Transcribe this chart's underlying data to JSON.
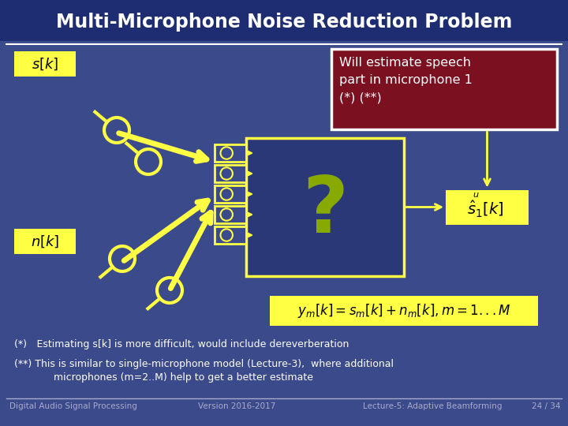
{
  "title": "Multi-Microphone Noise Reduction Problem",
  "bg_color": "#3A4A8A",
  "title_bg_color": "#1E2D72",
  "yellow": "#FFFF44",
  "red_box_color": "#7B1020",
  "white": "#FFFFFF",
  "footer_text_color": "#AAAACC",
  "footer_left": "Digital Audio Signal Processing",
  "footer_center": "Version 2016-2017",
  "footer_right_left": "Lecture-5: Adaptive Beamforming",
  "footer_right": "24 / 34",
  "note1": "(*) Estimating s[k] is more difficult, would include dereverberation",
  "note2": "(**) This is similar to single-microphone model (Lecture-3),  where additional",
  "note2b": "    microphones (m=2..M) help to get a better estimate",
  "red_box_text": "Will estimate speech\npart in microphone 1\n(*) (**)",
  "question_color": "#88AA00",
  "d_block_color": "#3A4A8A",
  "main_box_color": "#2A3878"
}
